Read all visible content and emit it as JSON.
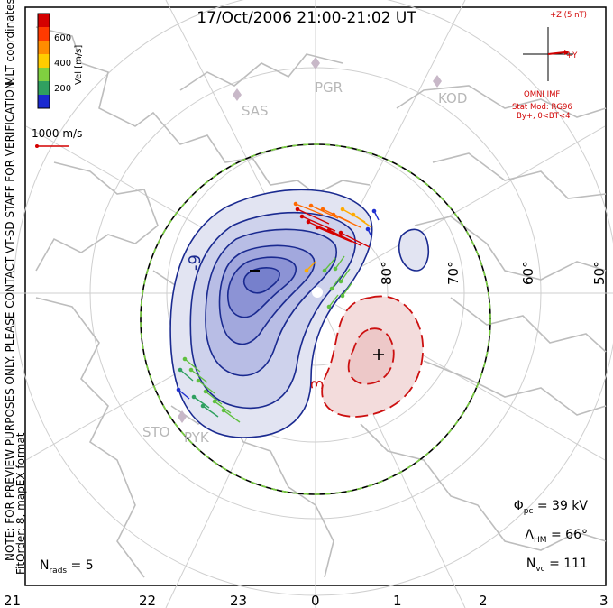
{
  "title": "17/Oct/2006  21:00-21:02  UT",
  "colorbar": {
    "label": "Vel [m/s]",
    "ticks": [
      "600",
      "400",
      "200"
    ],
    "colors": [
      "#d40000",
      "#ff6a00",
      "#ffaa00",
      "#80d040",
      "#30a060",
      "#4040c0",
      "#0020e0"
    ]
  },
  "vector_scale": "1000 m/s",
  "side_text": {
    "coords": "MLT coordinates",
    "preview": "NOTE: FOR PREVIEW PURPOSES ONLY. PLEASE CONTACT VT-SD STAFF FOR VERIFICATION.",
    "fit": "FitOrder: 8, mapEX format"
  },
  "imf": {
    "z_label": "+Z (5 nT)",
    "y_label": "+Y",
    "source": "OMNI IMF",
    "model": "Stat Mod: RG96",
    "condition": "By+, 0<BT<4"
  },
  "stations": [
    "PGR",
    "KOD",
    "SAS",
    "STO",
    "PYK"
  ],
  "latitudes": [
    "80°",
    "70°",
    "60°",
    "50°"
  ],
  "contour_labels": {
    "neg": "-9",
    "pos": "3"
  },
  "markers": {
    "min": "−",
    "max": "+"
  },
  "stats": {
    "phi_pc": {
      "sym": "Φ",
      "sub": "pc",
      "val": " = 39 kV"
    },
    "lambda_hm": {
      "sym": "Λ",
      "sub": "HM",
      "val": " = 66°"
    },
    "n_vc": {
      "sym": "N",
      "sub": "vc",
      "val": " = 111"
    },
    "n_rads": {
      "sym": "N",
      "sub": "rads",
      "val": " = 5"
    }
  },
  "mlt_ticks": [
    "21",
    "22",
    "23",
    "0",
    "1",
    "2",
    "3"
  ]
}
